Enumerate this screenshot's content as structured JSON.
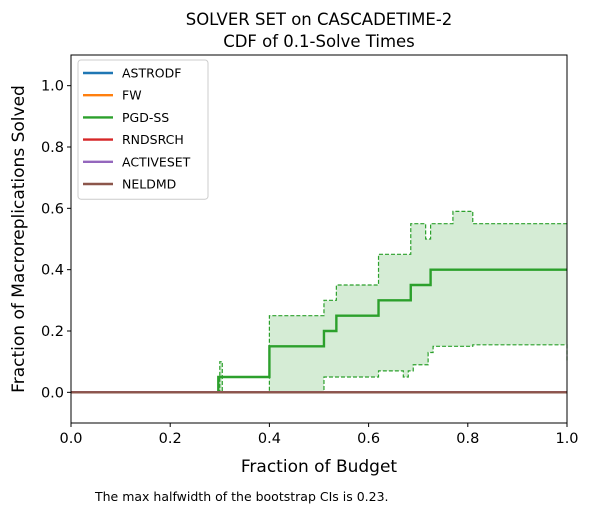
{
  "chart_data": {
    "type": "line",
    "title": "SOLVER SET on CASCADETIME-2",
    "subtitle": "CDF of 0.1-Solve Times",
    "xlabel": "Fraction of Budget",
    "ylabel": "Fraction of Macroreplications Solved",
    "xlim": [
      0.0,
      1.0
    ],
    "ylim": [
      -0.1,
      1.1
    ],
    "xticks": [
      "0.0",
      "0.2",
      "0.4",
      "0.6",
      "0.8",
      "1.0"
    ],
    "yticks": [
      "0.0",
      "0.2",
      "0.4",
      "0.6",
      "0.8",
      "1.0"
    ],
    "grid": false,
    "legend_position": "top-left",
    "series": [
      {
        "name": "ASTRODF",
        "color": "#1f77b4",
        "x": [
          0.0,
          1.0
        ],
        "y": [
          0.0,
          0.0
        ]
      },
      {
        "name": "FW",
        "color": "#ff7f0e",
        "x": [
          0.0,
          1.0
        ],
        "y": [
          0.0,
          0.0
        ]
      },
      {
        "name": "PGD-SS",
        "color": "#2ca02c",
        "x": [
          0.0,
          0.297,
          0.4,
          0.51,
          0.535,
          0.62,
          0.685,
          0.725,
          1.0
        ],
        "y": [
          0.0,
          0.05,
          0.15,
          0.2,
          0.25,
          0.3,
          0.35,
          0.4,
          0.4
        ]
      },
      {
        "name": "RNDSRCH",
        "color": "#d62728",
        "x": [
          0.0,
          1.0
        ],
        "y": [
          0.0,
          0.0
        ]
      },
      {
        "name": "ACTIVESET",
        "color": "#9467bd",
        "x": [
          0.0,
          1.0
        ],
        "y": [
          0.0,
          0.0
        ]
      },
      {
        "name": "NELDMD",
        "color": "#8c564b",
        "x": [
          0.0,
          1.0
        ],
        "y": [
          0.0,
          0.0
        ]
      }
    ],
    "ci_band": {
      "series": "PGD-SS",
      "color": "#2ca02c",
      "upper": {
        "x": [
          0.297,
          0.3,
          0.305,
          0.4,
          0.51,
          0.535,
          0.62,
          0.685,
          0.715,
          0.725,
          0.77,
          0.81,
          1.0
        ],
        "y": [
          0.0,
          0.1,
          0.0,
          0.25,
          0.3,
          0.35,
          0.45,
          0.55,
          0.5,
          0.55,
          0.59,
          0.55,
          0.55
        ]
      },
      "lower": {
        "x": [
          0.297,
          0.51,
          0.62,
          0.67,
          0.68,
          0.69,
          0.72,
          0.73,
          0.81,
          1.0
        ],
        "y": [
          0.0,
          0.05,
          0.07,
          0.05,
          0.07,
          0.09,
          0.13,
          0.15,
          0.155,
          0.1
        ]
      }
    },
    "annotations": [
      "The max halfwidth of the bootstrap CIs is 0.23."
    ]
  }
}
